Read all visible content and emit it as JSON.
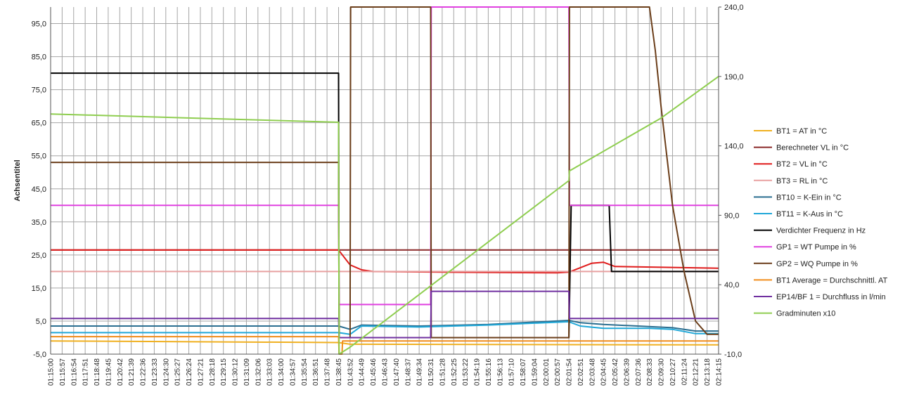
{
  "chart_data": {
    "type": "line",
    "ylabel": "Achsentitel",
    "y_left": {
      "min": -5,
      "max": 100,
      "ticks": [
        "95,0",
        "85,0",
        "75,0",
        "65,0",
        "55,0",
        "45,0",
        "35,0",
        "25,0",
        "15,0",
        "5,0",
        "-5,0"
      ]
    },
    "y_right": {
      "min": -10,
      "max": 240,
      "ticks": [
        "240,0",
        "190,0",
        "140,0",
        "90,0",
        "40,0",
        "-10,0"
      ]
    },
    "x_ticks": [
      "01:15:00",
      "01:15:57",
      "01:16:54",
      "01:17:51",
      "01:18:48",
      "01:19:45",
      "01:20:42",
      "01:21:39",
      "01:22:36",
      "01:23:33",
      "01:24:30",
      "01:25:27",
      "01:26:24",
      "01:27:21",
      "01:28:18",
      "01:29:15",
      "01:30:12",
      "01:31:09",
      "01:32:06",
      "01:33:03",
      "01:34:00",
      "01:34:57",
      "01:35:54",
      "01:36:51",
      "01:37:48",
      "01:38:45",
      "01:43:52",
      "01:44:49",
      "01:45:46",
      "01:46:43",
      "01:47:40",
      "01:48:37",
      "01:49:34",
      "01:50:31",
      "01:51:28",
      "01:52:25",
      "01:53:22",
      "01:54:19",
      "01:55:16",
      "01:56:13",
      "01:57:10",
      "01:58:07",
      "01:59:04",
      "02:00:01",
      "02:00:57",
      "02:01:54",
      "02:02:51",
      "02:03:48",
      "02:04:45",
      "02:05:42",
      "02:06:39",
      "02:07:36",
      "02:08:33",
      "02:09:30",
      "02:10:27",
      "02:11:24",
      "02:12:21",
      "02:13:18",
      "02:14:15"
    ],
    "legend_position": "right",
    "grid": true,
    "series": [
      {
        "name": "BT1 = AT in °C",
        "color": "#f0b020",
        "axis": "left",
        "points": [
          [
            0,
            -1.0
          ],
          [
            25,
            -1.5
          ],
          [
            26,
            -2.0
          ],
          [
            58,
            -2.2
          ]
        ]
      },
      {
        "name": "Berechneter VL in °C",
        "color": "#8b2a2a",
        "axis": "left",
        "points": [
          [
            0,
            26.5
          ],
          [
            58,
            26.5
          ]
        ]
      },
      {
        "name": "BT2 = VL in °C",
        "color": "#e01b1b",
        "axis": "left",
        "points": [
          [
            0,
            26.5
          ],
          [
            25,
            26.5
          ],
          [
            26,
            22
          ],
          [
            27,
            20.5
          ],
          [
            28,
            20.0
          ],
          [
            34,
            19.8
          ],
          [
            44,
            19.6
          ],
          [
            45,
            19.8
          ],
          [
            47,
            22.5
          ],
          [
            48,
            22.8
          ],
          [
            49,
            21.5
          ],
          [
            58,
            21.0
          ]
        ]
      },
      {
        "name": "BT3 = RL in °C",
        "color": "#e8a0a0",
        "axis": "left",
        "points": [
          [
            0,
            20.0
          ],
          [
            58,
            20.0
          ]
        ]
      },
      {
        "name": "BT10 = K-Ein in °C",
        "color": "#2a6e90",
        "axis": "left",
        "points": [
          [
            0,
            3.5
          ],
          [
            25,
            3.5
          ],
          [
            26,
            2.5
          ],
          [
            27,
            3.8
          ],
          [
            32,
            3.5
          ],
          [
            38,
            4.0
          ],
          [
            45,
            5.2
          ],
          [
            46,
            4.5
          ],
          [
            48,
            4.0
          ],
          [
            54,
            3.0
          ],
          [
            56,
            2.0
          ],
          [
            58,
            2.0
          ]
        ]
      },
      {
        "name": "BT11 = K-Aus in °C",
        "color": "#20a8d8",
        "axis": "left",
        "points": [
          [
            0,
            1.5
          ],
          [
            25,
            1.5
          ],
          [
            26,
            1.0
          ],
          [
            27,
            3.5
          ],
          [
            32,
            3.2
          ],
          [
            38,
            3.8
          ],
          [
            45,
            4.8
          ],
          [
            46,
            3.5
          ],
          [
            48,
            2.8
          ],
          [
            52,
            2.8
          ],
          [
            54,
            2.5
          ],
          [
            56,
            1.2
          ],
          [
            58,
            1.2
          ]
        ]
      },
      {
        "name": "Verdichter Frequenz in Hz",
        "color": "#000000",
        "axis": "left",
        "points": [
          [
            0,
            80
          ],
          [
            25,
            80
          ],
          [
            25.05,
            0
          ],
          [
            45,
            0
          ],
          [
            45.2,
            40
          ],
          [
            48.5,
            40
          ],
          [
            48.7,
            20
          ],
          [
            58,
            20
          ]
        ]
      },
      {
        "name": "GP1 = WT Pumpe in %",
        "color": "#e040e0",
        "axis": "left",
        "points": [
          [
            0,
            40
          ],
          [
            25,
            40
          ],
          [
            25.05,
            10
          ],
          [
            33,
            10
          ],
          [
            33.05,
            100
          ],
          [
            45,
            100
          ],
          [
            45.05,
            40
          ],
          [
            58,
            40
          ]
        ]
      },
      {
        "name": "GP2 = WQ Pumpe in %",
        "color": "#6b3e1a",
        "axis": "left",
        "points": [
          [
            0,
            53
          ],
          [
            25,
            53
          ],
          [
            25.05,
            0
          ],
          [
            26,
            0
          ],
          [
            26.05,
            100
          ],
          [
            33,
            100
          ],
          [
            33.05,
            0
          ],
          [
            45,
            0
          ],
          [
            45.05,
            100
          ],
          [
            52,
            100
          ],
          [
            52.5,
            87
          ],
          [
            53,
            70
          ],
          [
            54,
            40
          ],
          [
            55,
            20
          ],
          [
            56,
            5
          ],
          [
            57,
            1
          ],
          [
            58,
            1
          ]
        ]
      },
      {
        "name": "BT1 Average = Durchschnittl. AT",
        "color": "#f08c1a",
        "axis": "left",
        "points": [
          [
            0,
            0.3
          ],
          [
            25,
            0.3
          ],
          [
            25.05,
            -5
          ],
          [
            25.3,
            -5
          ],
          [
            25.35,
            -1
          ],
          [
            58,
            -1
          ]
        ]
      },
      {
        "name": "EP14/BF 1 = Durchfluss in l/min",
        "color": "#7030a0",
        "axis": "left",
        "points": [
          [
            0,
            5.8
          ],
          [
            25,
            5.8
          ],
          [
            25.05,
            0
          ],
          [
            33,
            0
          ],
          [
            33.05,
            14
          ],
          [
            45,
            14
          ],
          [
            45.05,
            5.8
          ],
          [
            58,
            5.8
          ]
        ]
      },
      {
        "name": "Gradminuten x10",
        "color": "#8fce50",
        "axis": "right",
        "points": [
          [
            0,
            163
          ],
          [
            25,
            157
          ],
          [
            25.05,
            -10
          ],
          [
            26,
            -5
          ],
          [
            45,
            115
          ],
          [
            45.05,
            122
          ],
          [
            53,
            160
          ],
          [
            58,
            190
          ]
        ]
      }
    ]
  }
}
